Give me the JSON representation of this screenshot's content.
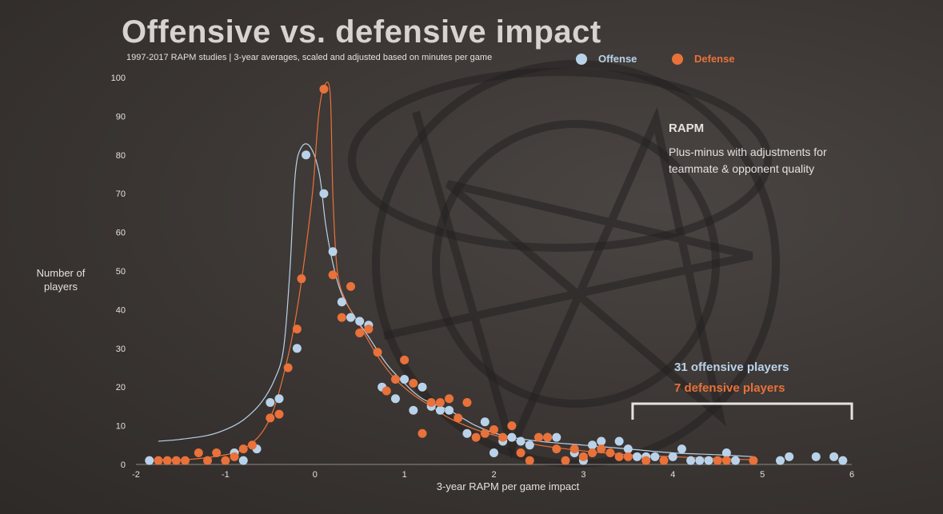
{
  "colors": {
    "offense": "#b9d2ea",
    "defense": "#e9713a",
    "axis": "#e4e0dc"
  },
  "header": {
    "title": "Offensive vs. defensive impact",
    "subtitle": "1997-2017 RAPM studies | 3-year averages, scaled and adjusted based on minutes per game"
  },
  "legend": {
    "offense": "Offense",
    "defense": "Defense"
  },
  "annotation": {
    "title": "RAPM",
    "description": "Plus-minus with adjustments for teammate & opponent quality",
    "offensive_note": "31 offensive players",
    "defensive_note": "7 defensive players",
    "bracket_range": [
      3.55,
      6.0
    ]
  },
  "chart_data": {
    "type": "scatter",
    "title": "Offensive vs. defensive impact",
    "xlabel": "3-year RAPM per game impact",
    "ylabel": "Number of players",
    "xlim": [
      -2,
      6
    ],
    "ylim": [
      0,
      100
    ],
    "xticks": [
      "-2",
      "-1",
      "0",
      "1",
      "2",
      "3",
      "4",
      "5",
      "6"
    ],
    "yticks": [
      "0",
      "10",
      "20",
      "30",
      "40",
      "50",
      "60",
      "70",
      "80",
      "90",
      "100"
    ],
    "series": [
      {
        "name": "Offense",
        "points": [
          [
            -1.85,
            1
          ],
          [
            -0.9,
            3
          ],
          [
            -0.8,
            1
          ],
          [
            -0.65,
            4
          ],
          [
            -0.5,
            16
          ],
          [
            -0.4,
            17
          ],
          [
            -0.2,
            30
          ],
          [
            -0.1,
            80
          ],
          [
            0.1,
            70
          ],
          [
            0.2,
            55
          ],
          [
            0.3,
            42
          ],
          [
            0.4,
            38
          ],
          [
            0.5,
            37
          ],
          [
            0.6,
            36
          ],
          [
            0.75,
            20
          ],
          [
            0.9,
            17
          ],
          [
            1.0,
            22
          ],
          [
            1.1,
            14
          ],
          [
            1.2,
            20
          ],
          [
            1.3,
            15
          ],
          [
            1.4,
            14
          ],
          [
            1.5,
            14
          ],
          [
            1.7,
            8
          ],
          [
            1.9,
            11
          ],
          [
            2.0,
            3
          ],
          [
            2.1,
            6
          ],
          [
            2.2,
            7
          ],
          [
            2.3,
            6
          ],
          [
            2.4,
            5
          ],
          [
            2.6,
            7
          ],
          [
            2.7,
            7
          ],
          [
            2.9,
            3
          ],
          [
            3.0,
            1
          ],
          [
            3.1,
            5
          ],
          [
            3.2,
            6
          ],
          [
            3.4,
            6
          ],
          [
            3.5,
            4
          ],
          [
            3.6,
            2
          ],
          [
            3.7,
            2
          ],
          [
            3.8,
            2
          ],
          [
            4.0,
            2
          ],
          [
            4.1,
            4
          ],
          [
            4.2,
            1
          ],
          [
            4.3,
            1
          ],
          [
            4.4,
            1
          ],
          [
            4.6,
            3
          ],
          [
            4.7,
            1
          ],
          [
            5.2,
            1
          ],
          [
            5.3,
            2
          ],
          [
            5.6,
            2
          ],
          [
            5.8,
            2
          ],
          [
            5.9,
            1
          ]
        ],
        "curve": [
          [
            -1.75,
            6
          ],
          [
            -1.5,
            6.5
          ],
          [
            -1.2,
            7.5
          ],
          [
            -1.0,
            9
          ],
          [
            -0.8,
            11.5
          ],
          [
            -0.6,
            16
          ],
          [
            -0.45,
            22
          ],
          [
            -0.35,
            30
          ],
          [
            -0.28,
            50
          ],
          [
            -0.22,
            75
          ],
          [
            -0.15,
            82
          ],
          [
            -0.05,
            82
          ],
          [
            0.05,
            75
          ],
          [
            0.12,
            62
          ],
          [
            0.2,
            52
          ],
          [
            0.3,
            44
          ],
          [
            0.45,
            38
          ],
          [
            0.6,
            33
          ],
          [
            0.8,
            26
          ],
          [
            1.0,
            21
          ],
          [
            1.2,
            17
          ],
          [
            1.5,
            14
          ],
          [
            1.8,
            10
          ],
          [
            2.1,
            7.5
          ],
          [
            2.5,
            6
          ],
          [
            3.0,
            5
          ],
          [
            3.5,
            4
          ],
          [
            4.0,
            3
          ],
          [
            4.5,
            2.5
          ],
          [
            4.9,
            2
          ]
        ]
      },
      {
        "name": "Defense",
        "points": [
          [
            -1.75,
            1
          ],
          [
            -1.65,
            1
          ],
          [
            -1.55,
            1
          ],
          [
            -1.45,
            1
          ],
          [
            -1.3,
            3
          ],
          [
            -1.2,
            1
          ],
          [
            -1.1,
            3
          ],
          [
            -1.0,
            1
          ],
          [
            -0.9,
            2
          ],
          [
            -0.8,
            4
          ],
          [
            -0.7,
            5
          ],
          [
            -0.5,
            12
          ],
          [
            -0.4,
            13
          ],
          [
            -0.3,
            25
          ],
          [
            -0.2,
            35
          ],
          [
            -0.15,
            48
          ],
          [
            0.1,
            97
          ],
          [
            0.2,
            49
          ],
          [
            0.3,
            38
          ],
          [
            0.4,
            46
          ],
          [
            0.5,
            34
          ],
          [
            0.6,
            35
          ],
          [
            0.7,
            29
          ],
          [
            0.8,
            19
          ],
          [
            0.9,
            22
          ],
          [
            1.0,
            27
          ],
          [
            1.1,
            21
          ],
          [
            1.2,
            8
          ],
          [
            1.3,
            16
          ],
          [
            1.4,
            16
          ],
          [
            1.5,
            17
          ],
          [
            1.6,
            12
          ],
          [
            1.7,
            16
          ],
          [
            1.8,
            7
          ],
          [
            1.9,
            8
          ],
          [
            2.0,
            9
          ],
          [
            2.1,
            7
          ],
          [
            2.2,
            10
          ],
          [
            2.3,
            3
          ],
          [
            2.4,
            1
          ],
          [
            2.5,
            7
          ],
          [
            2.6,
            7
          ],
          [
            2.7,
            4
          ],
          [
            2.8,
            1
          ],
          [
            2.9,
            4
          ],
          [
            3.0,
            2
          ],
          [
            3.1,
            3
          ],
          [
            3.2,
            4
          ],
          [
            3.3,
            3
          ],
          [
            3.4,
            2
          ],
          [
            3.5,
            2
          ],
          [
            3.7,
            1
          ],
          [
            3.9,
            1
          ],
          [
            4.5,
            1
          ],
          [
            4.6,
            1
          ],
          [
            4.9,
            1
          ]
        ],
        "curve": [
          [
            -1.75,
            1.2
          ],
          [
            -1.4,
            1.3
          ],
          [
            -1.0,
            2.5
          ],
          [
            -0.8,
            4
          ],
          [
            -0.6,
            8
          ],
          [
            -0.45,
            15
          ],
          [
            -0.3,
            28
          ],
          [
            -0.2,
            40
          ],
          [
            -0.1,
            56
          ],
          [
            -0.02,
            72
          ],
          [
            0.04,
            90
          ],
          [
            0.1,
            97.5
          ],
          [
            0.17,
            96
          ],
          [
            0.2,
            70
          ],
          [
            0.25,
            50
          ],
          [
            0.35,
            42
          ],
          [
            0.5,
            36
          ],
          [
            0.7,
            28
          ],
          [
            0.9,
            22
          ],
          [
            1.1,
            18
          ],
          [
            1.3,
            15
          ],
          [
            1.5,
            12
          ],
          [
            1.8,
            9
          ],
          [
            2.1,
            7
          ],
          [
            2.5,
            5
          ],
          [
            3.0,
            3.5
          ],
          [
            3.5,
            2.5
          ],
          [
            4.0,
            2
          ],
          [
            4.5,
            1.5
          ],
          [
            4.9,
            1.2
          ]
        ]
      }
    ]
  }
}
